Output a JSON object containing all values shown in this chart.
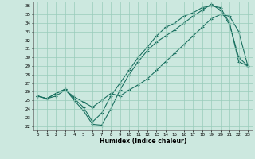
{
  "xlabel": "Humidex (Indice chaleur)",
  "ylabel": "",
  "xlim": [
    -0.5,
    23.5
  ],
  "ylim": [
    21.5,
    36.5
  ],
  "yticks": [
    22,
    23,
    24,
    25,
    26,
    27,
    28,
    29,
    30,
    31,
    32,
    33,
    34,
    35,
    36
  ],
  "xticks": [
    0,
    1,
    2,
    3,
    4,
    5,
    6,
    7,
    8,
    9,
    10,
    11,
    12,
    13,
    14,
    15,
    16,
    17,
    18,
    19,
    20,
    21,
    22,
    23
  ],
  "bg_color": "#cce8df",
  "grid_color": "#99ccbb",
  "line_color": "#1a7060",
  "line1_x": [
    0,
    1,
    2,
    3,
    4,
    5,
    6,
    7,
    8,
    9,
    10,
    11,
    12,
    13,
    14,
    15,
    16,
    17,
    18,
    19,
    20,
    21,
    22,
    23
  ],
  "line1_y": [
    25.5,
    25.2,
    25.5,
    26.2,
    25.4,
    24.8,
    24.2,
    25.0,
    25.8,
    25.5,
    26.2,
    26.8,
    27.5,
    28.5,
    29.5,
    30.5,
    31.5,
    32.5,
    33.5,
    34.5,
    35.0,
    34.8,
    33.0,
    29.0
  ],
  "line2_x": [
    0,
    1,
    2,
    3,
    4,
    5,
    6,
    7,
    8,
    9,
    10,
    11,
    12,
    13,
    14,
    15,
    16,
    17,
    18,
    19,
    20,
    21,
    22,
    23
  ],
  "line2_y": [
    25.5,
    25.2,
    25.8,
    26.3,
    25.0,
    23.8,
    22.2,
    22.1,
    24.0,
    26.2,
    28.0,
    29.5,
    30.8,
    31.8,
    32.5,
    33.2,
    34.0,
    34.8,
    35.5,
    36.2,
    35.5,
    33.8,
    30.0,
    29.0
  ],
  "line3_x": [
    0,
    1,
    2,
    3,
    4,
    5,
    6,
    7,
    8,
    9,
    10,
    11,
    12,
    13,
    14,
    15,
    16,
    17,
    18,
    19,
    20,
    21,
    22,
    23
  ],
  "line3_y": [
    25.5,
    25.2,
    25.8,
    26.3,
    25.2,
    24.2,
    22.5,
    23.5,
    25.5,
    27.0,
    28.5,
    30.0,
    31.2,
    32.5,
    33.5,
    34.0,
    34.8,
    35.2,
    35.8,
    36.0,
    35.8,
    34.0,
    29.5,
    29.0
  ]
}
